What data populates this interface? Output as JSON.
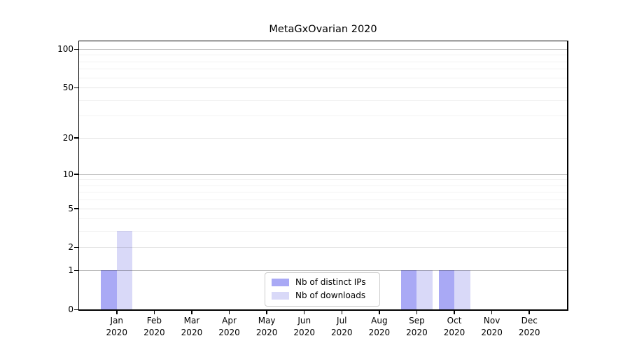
{
  "chart_data": {
    "type": "bar",
    "title": "MetaGxOvarian 2020",
    "categories": [
      {
        "month": "Jan",
        "year": "2020"
      },
      {
        "month": "Feb",
        "year": "2020"
      },
      {
        "month": "Mar",
        "year": "2020"
      },
      {
        "month": "Apr",
        "year": "2020"
      },
      {
        "month": "May",
        "year": "2020"
      },
      {
        "month": "Jun",
        "year": "2020"
      },
      {
        "month": "Jul",
        "year": "2020"
      },
      {
        "month": "Aug",
        "year": "2020"
      },
      {
        "month": "Sep",
        "year": "2020"
      },
      {
        "month": "Oct",
        "year": "2020"
      },
      {
        "month": "Nov",
        "year": "2020"
      },
      {
        "month": "Dec",
        "year": "2020"
      }
    ],
    "series": [
      {
        "name": "Nb of distinct IPs",
        "color": "#a9a9f5",
        "values": [
          1,
          0,
          0,
          0,
          0,
          0,
          0,
          0,
          1,
          1,
          0,
          0
        ]
      },
      {
        "name": "Nb of downloads",
        "color": "#d9d9f8",
        "values": [
          3,
          0,
          0,
          0,
          0,
          0,
          0,
          0,
          1,
          1,
          0,
          0
        ]
      }
    ],
    "xlabel": "",
    "ylabel": "",
    "yscale": "log1p",
    "ylim": [
      0,
      115
    ],
    "yticks": [
      100,
      50,
      20,
      10,
      5,
      2,
      1,
      0
    ],
    "minor_gridlines": [
      3,
      4,
      6,
      7,
      8,
      9,
      30,
      40,
      60,
      70,
      80,
      90
    ],
    "grid": true,
    "legend_position": "lower center inside"
  },
  "colors": {
    "decade_gridline": "rgba(0,0,0,0.27)",
    "major_gridline": "rgba(0,0,0,0.10)",
    "minor_gridline": "rgba(0,0,0,0.05)",
    "axis": "#000000",
    "background": "#ffffff"
  }
}
